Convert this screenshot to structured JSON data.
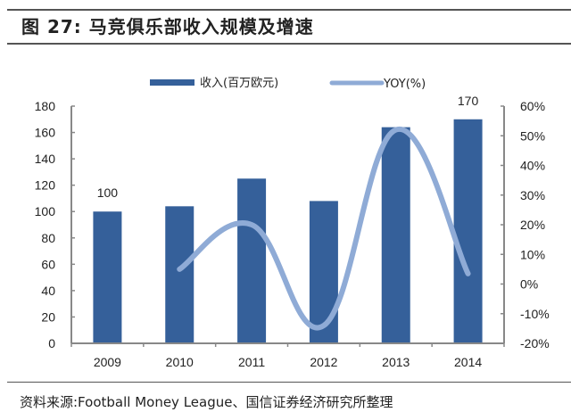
{
  "header": {
    "title": "图 27:  马竞俱乐部收入规模及增速"
  },
  "footer": {
    "source": "资料来源:Football Money League、国信证券经济研究所整理"
  },
  "colors": {
    "bar": "#35609a",
    "line": "#8fabd6",
    "axis": "#888888"
  },
  "chart_data": {
    "type": "bar+line",
    "title": "马竞俱乐部收入规模及增速",
    "categories": [
      "2009",
      "2010",
      "2011",
      "2012",
      "2013",
      "2014"
    ],
    "series": [
      {
        "name": "收入(百万欧元)",
        "type": "bar",
        "axis": "left",
        "values": [
          100,
          104,
          125,
          108,
          164,
          170
        ]
      },
      {
        "name": "YOY(%)",
        "type": "line",
        "axis": "right",
        "values": [
          null,
          5,
          20,
          -14,
          52,
          3.5
        ]
      }
    ],
    "data_labels": [
      {
        "category": "2009",
        "text": "100"
      },
      {
        "category": "2014",
        "text": "170"
      }
    ],
    "left_axis": {
      "ylim": [
        0,
        180
      ],
      "ticks": [
        "0",
        "20",
        "40",
        "60",
        "80",
        "100",
        "120",
        "140",
        "160",
        "180"
      ]
    },
    "right_axis": {
      "ylim": [
        -20,
        60
      ],
      "ticks": [
        "-20%",
        "-10%",
        "0%",
        "10%",
        "20%",
        "30%",
        "40%",
        "50%",
        "60%"
      ]
    },
    "legend": {
      "position": "top",
      "entries": [
        "收入(百万欧元)",
        "YOY(%)"
      ]
    },
    "grid": false,
    "xlabel": "",
    "ylabel": ""
  }
}
